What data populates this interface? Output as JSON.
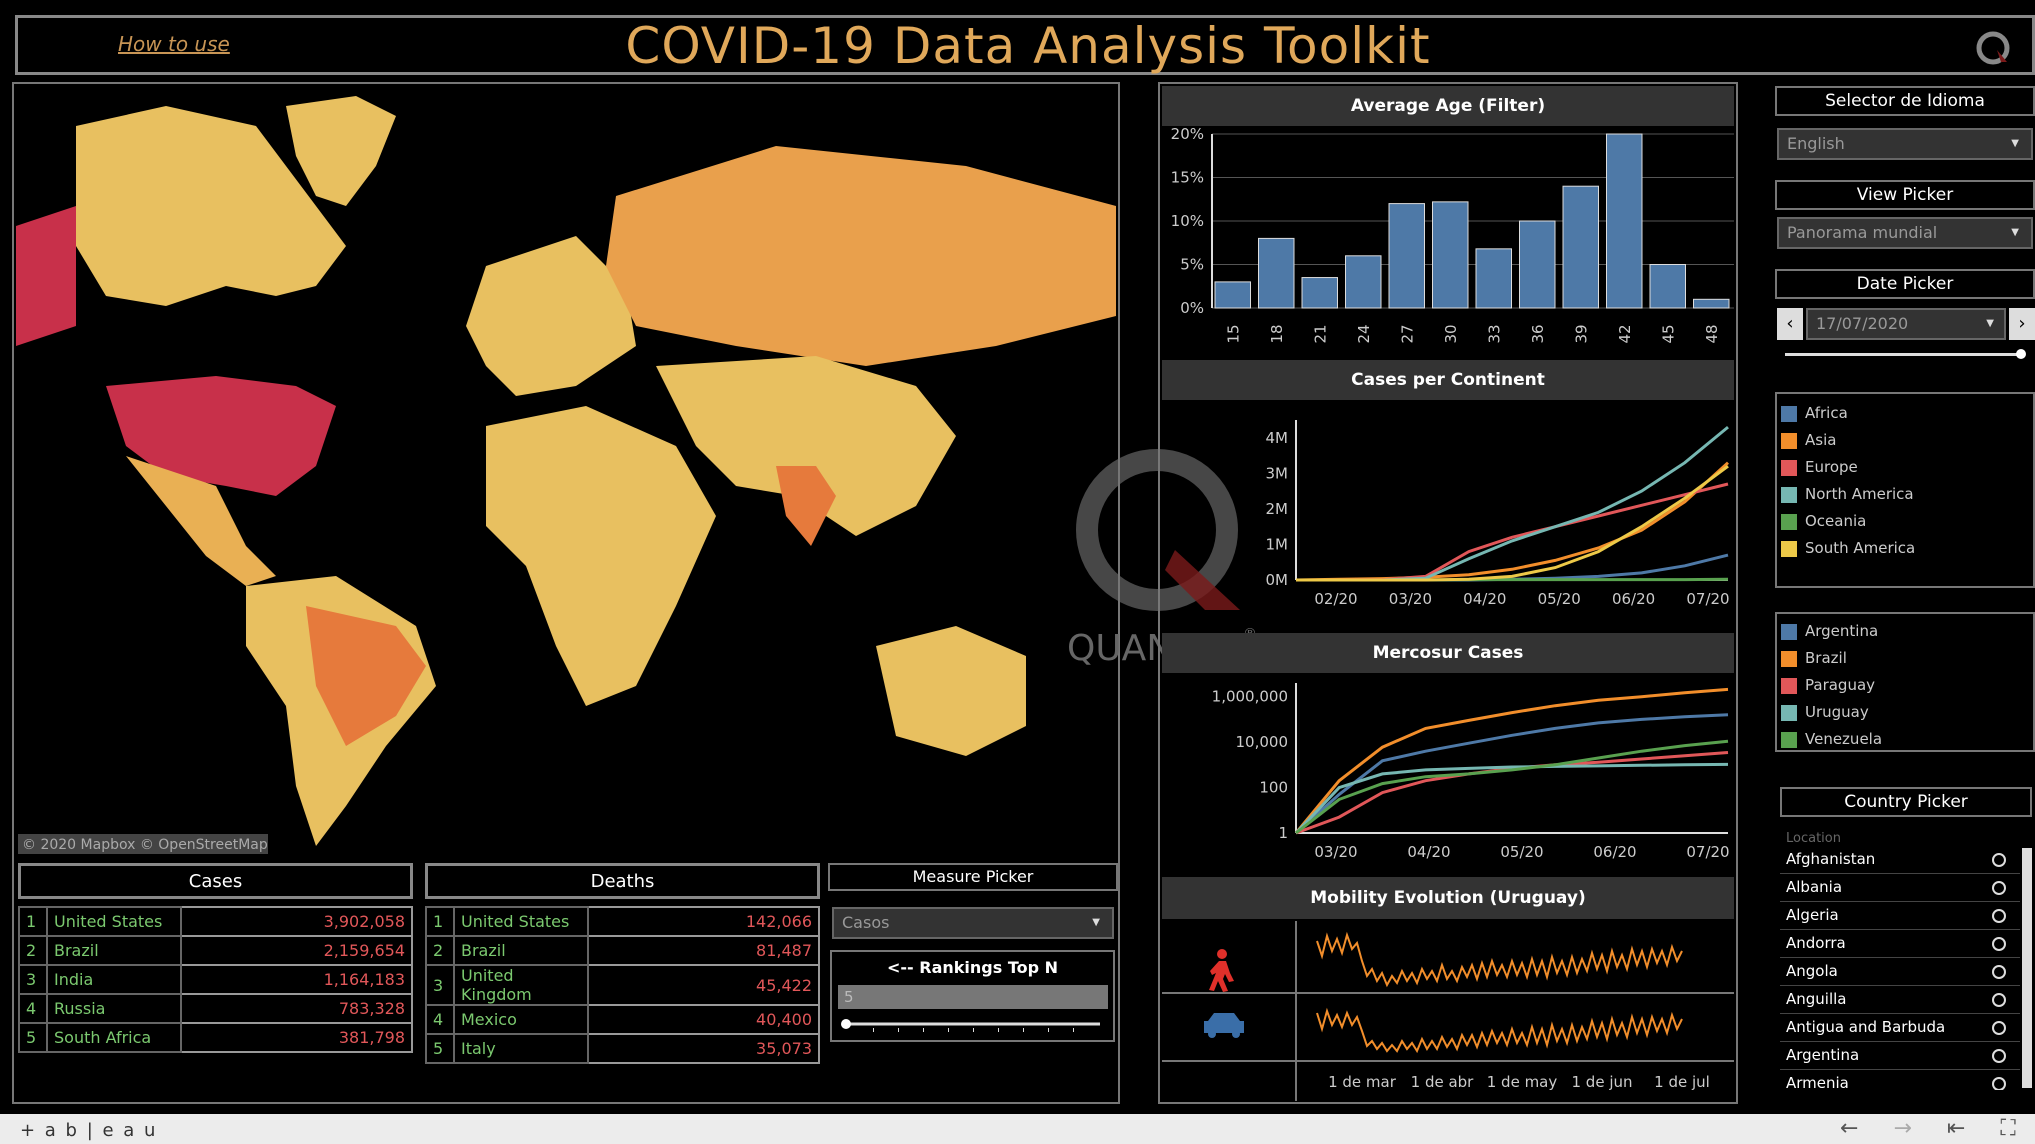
{
  "header": {
    "title": "COVID-19 Data Analysis Toolkit",
    "how_to": "How to use"
  },
  "map": {
    "attribution": "© 2020 Mapbox  © OpenStreetMap"
  },
  "watermark": {
    "text": "QUANAM",
    "mark": "®"
  },
  "cases": {
    "title": "Cases",
    "rows": [
      {
        "rank": "1",
        "country": "United States",
        "value": "3,902,058"
      },
      {
        "rank": "2",
        "country": "Brazil",
        "value": "2,159,654"
      },
      {
        "rank": "3",
        "country": "India",
        "value": "1,164,183"
      },
      {
        "rank": "4",
        "country": "Russia",
        "value": "783,328"
      },
      {
        "rank": "5",
        "country": "South Africa",
        "value": "381,798"
      }
    ]
  },
  "deaths": {
    "title": "Deaths",
    "rows": [
      {
        "rank": "1",
        "country": "United States",
        "value": "142,066"
      },
      {
        "rank": "2",
        "country": "Brazil",
        "value": "81,487"
      },
      {
        "rank": "3",
        "country": "United Kingdom",
        "value": "45,422"
      },
      {
        "rank": "4",
        "country": "Mexico",
        "value": "40,400"
      },
      {
        "rank": "5",
        "country": "Italy",
        "value": "35,073"
      }
    ]
  },
  "measure_picker": {
    "title": "Measure Picker",
    "value": "Casos"
  },
  "rankings": {
    "title": "<--  Rankings Top N",
    "value": "5",
    "level": 0.0
  },
  "average_age": {
    "title": "Average Age (Filter)"
  },
  "cases_continent": {
    "title": "Cases per Continent"
  },
  "mercosur": {
    "title": "Mercosur Cases"
  },
  "mobility": {
    "title": "Mobility Evolution (Uruguay)",
    "x_ticks": [
      "1 de mar",
      "1 de abr",
      "1 de may",
      "1 de jun",
      "1 de jul"
    ],
    "icons": [
      "walking-person-icon",
      "car-icon"
    ]
  },
  "language": {
    "title": "Selector de Idioma",
    "value": "English"
  },
  "view": {
    "title": "View Picker",
    "value": "Panorama mundial"
  },
  "date": {
    "title": "Date Picker",
    "value": "17/07/2020",
    "level": 1.0
  },
  "continent_legend": [
    {
      "name": "Africa",
      "color": "#4e79a7"
    },
    {
      "name": "Asia",
      "color": "#f28e2b"
    },
    {
      "name": "Europe",
      "color": "#e15759"
    },
    {
      "name": "North America",
      "color": "#76b7b2"
    },
    {
      "name": "Oceania",
      "color": "#59a14f"
    },
    {
      "name": "South America",
      "color": "#edc948"
    }
  ],
  "mercosur_legend": [
    {
      "name": "Argentina",
      "color": "#4e79a7"
    },
    {
      "name": "Brazil",
      "color": "#f28e2b"
    },
    {
      "name": "Paraguay",
      "color": "#e15759"
    },
    {
      "name": "Uruguay",
      "color": "#76b7b2"
    },
    {
      "name": "Venezuela",
      "color": "#59a14f"
    }
  ],
  "country_picker": {
    "title": "Country Picker",
    "header": "Location",
    "items": [
      "Afghanistan",
      "Albania",
      "Algeria",
      "Andorra",
      "Angola",
      "Anguilla",
      "Antigua and Barbuda",
      "Argentina",
      "Armenia"
    ]
  },
  "footer": {
    "brand": "+ a b | e a u"
  },
  "chart_data": [
    {
      "type": "bar",
      "title": "Average Age (Filter)",
      "categories": [
        "15",
        "18",
        "21",
        "24",
        "27",
        "30",
        "33",
        "36",
        "39",
        "42",
        "45",
        "48"
      ],
      "values": [
        3,
        8,
        3.5,
        6,
        12,
        12.2,
        6.8,
        10,
        14,
        20,
        5,
        1
      ],
      "ylim": [
        0,
        20
      ],
      "y_ticks": [
        "0%",
        "5%",
        "10%",
        "15%",
        "20%"
      ],
      "color": "#4e79a7"
    },
    {
      "type": "line",
      "title": "Cases per Continent",
      "x_ticks": [
        "02/20",
        "03/20",
        "04/20",
        "05/20",
        "06/20",
        "07/20"
      ],
      "y_ticks": [
        "0M",
        "1M",
        "2M",
        "3M",
        "4M"
      ],
      "ylim": [
        0,
        4.5
      ],
      "x": [
        0,
        1,
        2,
        3,
        4,
        5,
        6,
        7,
        8,
        9,
        10
      ],
      "series": [
        {
          "name": "Africa",
          "color": "#4e79a7",
          "values": [
            0,
            0,
            0,
            0,
            0,
            0.02,
            0.05,
            0.1,
            0.2,
            0.4,
            0.7
          ]
        },
        {
          "name": "Asia",
          "color": "#f28e2b",
          "values": [
            0,
            0.02,
            0.04,
            0.08,
            0.15,
            0.3,
            0.55,
            0.9,
            1.4,
            2.2,
            3.3
          ]
        },
        {
          "name": "Europe",
          "color": "#e15759",
          "values": [
            0,
            0,
            0.01,
            0.1,
            0.8,
            1.2,
            1.5,
            1.8,
            2.1,
            2.4,
            2.7
          ]
        },
        {
          "name": "North America",
          "color": "#76b7b2",
          "values": [
            0,
            0,
            0,
            0.05,
            0.6,
            1.1,
            1.5,
            1.9,
            2.5,
            3.3,
            4.3
          ]
        },
        {
          "name": "Oceania",
          "color": "#59a14f",
          "values": [
            0,
            0,
            0,
            0,
            0.01,
            0.01,
            0.01,
            0.01,
            0.01,
            0.01,
            0.02
          ]
        },
        {
          "name": "South America",
          "color": "#edc948",
          "values": [
            0,
            0,
            0,
            0,
            0.02,
            0.1,
            0.35,
            0.8,
            1.5,
            2.3,
            3.2
          ]
        }
      ]
    },
    {
      "type": "line",
      "title": "Mercosur Cases",
      "scale": "log",
      "x_ticks": [
        "03/20",
        "04/20",
        "05/20",
        "06/20",
        "07/20"
      ],
      "y_ticks": [
        "1",
        "100",
        "10,000",
        "1,000,000"
      ],
      "x": [
        0,
        1,
        2,
        3,
        4,
        5,
        6,
        7,
        8,
        9,
        10
      ],
      "series": [
        {
          "name": "Argentina",
          "color": "#4e79a7",
          "values": [
            1,
            50,
            1500,
            4000,
            9000,
            20000,
            40000,
            70000,
            100000,
            130000,
            160000
          ]
        },
        {
          "name": "Brazil",
          "color": "#f28e2b",
          "values": [
            1,
            200,
            6000,
            40000,
            90000,
            200000,
            400000,
            700000,
            1000000,
            1500000,
            2100000
          ]
        },
        {
          "name": "Paraguay",
          "color": "#e15759",
          "values": [
            1,
            5,
            60,
            200,
            400,
            700,
            1000,
            1300,
            1800,
            2500,
            3500
          ]
        },
        {
          "name": "Uruguay",
          "color": "#76b7b2",
          "values": [
            1,
            100,
            400,
            600,
            700,
            800,
            850,
            900,
            950,
            1000,
            1050
          ]
        },
        {
          "name": "Venezuela",
          "color": "#59a14f",
          "values": [
            1,
            30,
            150,
            300,
            400,
            600,
            1000,
            2000,
            4000,
            7000,
            11000
          ]
        }
      ]
    }
  ]
}
